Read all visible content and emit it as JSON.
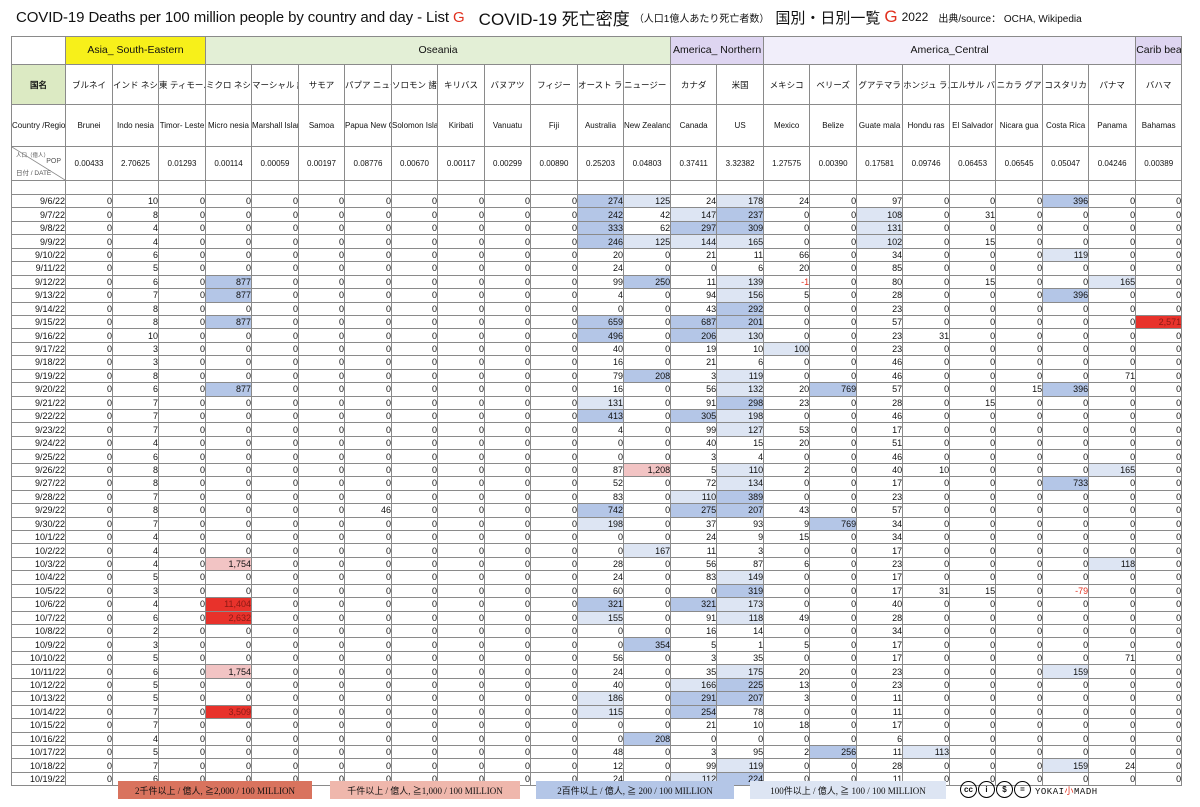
{
  "title": {
    "en": "COVID-19 Deaths per 100 million people by country and day - List",
    "list_letter": "G",
    "jp_main": "COVID-19 死亡密度",
    "jp_sub": "（人口1億人あたり死亡者数）",
    "jp_list": "国別・日別一覧",
    "jp_letter": "G",
    "year": "2022",
    "source": "出典/source： OCHA, Wikipedia"
  },
  "groups": [
    {
      "label": "Asia_ South-Eastern",
      "span": 3,
      "cls": "g-asia"
    },
    {
      "label": "Oseania",
      "span": 10,
      "cls": "g-oce"
    },
    {
      "label": "America_ Northern",
      "span": 2,
      "cls": "g-amn"
    },
    {
      "label": "America_Central",
      "span": 8,
      "cls": "g-amc"
    },
    {
      "label": "Carib bean",
      "span": 1,
      "cls": "g-car"
    }
  ],
  "row_labels": {
    "jp": "国名",
    "en": "Country /Region",
    "pop_top": "人口（億人）",
    "pop_mid": "POP",
    "pop_unit": "(億人)",
    "pop_date": "日付 / DATE"
  },
  "countries": [
    {
      "jp": "ブルネイ",
      "en": "Brunei",
      "pop": "0.00433"
    },
    {
      "jp": "インド ネシア",
      "en": "Indo nesia",
      "pop": "2.70625"
    },
    {
      "jp": "東 ティモール",
      "en": "Timor- Leste",
      "pop": "0.01293"
    },
    {
      "jp": "ミクロ ネシア 連邦",
      "en": "Micro nesia",
      "pop": "0.00114"
    },
    {
      "jp": "マーシャル 諸島",
      "en": "Marshall Islands",
      "pop": "0.00059"
    },
    {
      "jp": "サモア",
      "en": "Samoa",
      "pop": "0.00197"
    },
    {
      "jp": "パプア ニュー ギニア",
      "en": "Papua New Guinea",
      "pop": "0.08776"
    },
    {
      "jp": "ソロモン 諸島",
      "en": "Solomon Islands",
      "pop": "0.00670"
    },
    {
      "jp": "キリバス",
      "en": "Kiribati",
      "pop": "0.00117"
    },
    {
      "jp": "バヌアツ",
      "en": "Vanuatu",
      "pop": "0.00299"
    },
    {
      "jp": "フィジー",
      "en": "Fiji",
      "pop": "0.00890"
    },
    {
      "jp": "オースト ラリア",
      "en": "Australia",
      "pop": "0.25203"
    },
    {
      "jp": "ニュージー ランド",
      "en": "New Zealand",
      "pop": "0.04803"
    },
    {
      "jp": "カナダ",
      "en": "Canada",
      "pop": "0.37411"
    },
    {
      "jp": "米国",
      "en": "US",
      "pop": "3.32382"
    },
    {
      "jp": "メキシコ",
      "en": "Mexico",
      "pop": "1.27575"
    },
    {
      "jp": "ベリーズ",
      "en": "Belize",
      "pop": "0.00390"
    },
    {
      "jp": "グアテマラ",
      "en": "Guate mala",
      "pop": "0.17581"
    },
    {
      "jp": "ホンジュ ラス",
      "en": "Hondu ras",
      "pop": "0.09746"
    },
    {
      "jp": "エルサル バドル",
      "en": "El Salvador",
      "pop": "0.06453"
    },
    {
      "jp": "ニカラ グア",
      "en": "Nicara gua",
      "pop": "0.06545"
    },
    {
      "jp": "コスタリカ",
      "en": "Costa Rica",
      "pop": "0.05047"
    },
    {
      "jp": "パナマ",
      "en": "Panama",
      "pop": "0.04246"
    },
    {
      "jp": "バハマ",
      "en": "Bahamas",
      "pop": "0.00389"
    }
  ],
  "rows": [
    {
      "date": "9/6/22",
      "v": [
        "0",
        "10",
        "0",
        "0",
        "0",
        "0",
        "0",
        "0",
        "0",
        "0",
        "0",
        "274",
        "125",
        "24",
        "178",
        "24",
        "0",
        "97",
        "0",
        "0",
        "0",
        "396",
        "0",
        "0"
      ]
    },
    {
      "date": "9/7/22",
      "v": [
        "0",
        "8",
        "0",
        "0",
        "0",
        "0",
        "0",
        "0",
        "0",
        "0",
        "0",
        "242",
        "42",
        "147",
        "237",
        "0",
        "0",
        "108",
        "0",
        "31",
        "0",
        "0",
        "0",
        "0"
      ]
    },
    {
      "date": "9/8/22",
      "v": [
        "0",
        "4",
        "0",
        "0",
        "0",
        "0",
        "0",
        "0",
        "0",
        "0",
        "0",
        "333",
        "62",
        "297",
        "309",
        "0",
        "0",
        "131",
        "0",
        "0",
        "0",
        "0",
        "0",
        "0"
      ]
    },
    {
      "date": "9/9/22",
      "v": [
        "0",
        "4",
        "0",
        "0",
        "0",
        "0",
        "0",
        "0",
        "0",
        "0",
        "0",
        "246",
        "125",
        "144",
        "165",
        "0",
        "0",
        "102",
        "0",
        "15",
        "0",
        "0",
        "0",
        "0"
      ]
    },
    {
      "date": "9/10/22",
      "v": [
        "0",
        "6",
        "0",
        "0",
        "0",
        "0",
        "0",
        "0",
        "0",
        "0",
        "0",
        "20",
        "0",
        "21",
        "11",
        "66",
        "0",
        "34",
        "0",
        "0",
        "0",
        "119",
        "0",
        "0"
      ]
    },
    {
      "date": "9/11/22",
      "v": [
        "0",
        "5",
        "0",
        "0",
        "0",
        "0",
        "0",
        "0",
        "0",
        "0",
        "0",
        "24",
        "0",
        "0",
        "6",
        "20",
        "0",
        "85",
        "0",
        "0",
        "0",
        "0",
        "0",
        "0"
      ]
    },
    {
      "date": "9/12/22",
      "v": [
        "0",
        "6",
        "0",
        "877",
        "0",
        "0",
        "0",
        "0",
        "0",
        "0",
        "0",
        "99",
        "250",
        "11",
        "139",
        "-1",
        "0",
        "80",
        "0",
        "15",
        "0",
        "0",
        "165",
        "0"
      ]
    },
    {
      "date": "9/13/22",
      "v": [
        "0",
        "7",
        "0",
        "877",
        "0",
        "0",
        "0",
        "0",
        "0",
        "0",
        "0",
        "4",
        "0",
        "94",
        "156",
        "5",
        "0",
        "28",
        "0",
        "0",
        "0",
        "396",
        "0",
        "0"
      ]
    },
    {
      "date": "9/14/22",
      "v": [
        "0",
        "8",
        "0",
        "0",
        "0",
        "0",
        "0",
        "0",
        "0",
        "0",
        "0",
        "0",
        "0",
        "43",
        "292",
        "0",
        "0",
        "23",
        "0",
        "0",
        "0",
        "0",
        "0",
        "0"
      ]
    },
    {
      "date": "9/15/22",
      "v": [
        "0",
        "8",
        "0",
        "877",
        "0",
        "0",
        "0",
        "0",
        "0",
        "0",
        "0",
        "659",
        "0",
        "687",
        "201",
        "0",
        "0",
        "57",
        "0",
        "0",
        "0",
        "0",
        "0",
        "2,571"
      ]
    },
    {
      "date": "9/16/22",
      "v": [
        "0",
        "10",
        "0",
        "0",
        "0",
        "0",
        "0",
        "0",
        "0",
        "0",
        "0",
        "496",
        "0",
        "206",
        "130",
        "0",
        "0",
        "23",
        "31",
        "0",
        "0",
        "0",
        "0",
        "0"
      ]
    },
    {
      "date": "9/17/22",
      "v": [
        "0",
        "3",
        "0",
        "0",
        "0",
        "0",
        "0",
        "0",
        "0",
        "0",
        "0",
        "40",
        "0",
        "19",
        "10",
        "100",
        "0",
        "23",
        "0",
        "0",
        "0",
        "0",
        "0",
        "0"
      ]
    },
    {
      "date": "9/18/22",
      "v": [
        "0",
        "3",
        "0",
        "0",
        "0",
        "0",
        "0",
        "0",
        "0",
        "0",
        "0",
        "16",
        "0",
        "21",
        "6",
        "0",
        "0",
        "46",
        "0",
        "0",
        "0",
        "0",
        "0",
        "0"
      ]
    },
    {
      "date": "9/19/22",
      "v": [
        "0",
        "8",
        "0",
        "0",
        "0",
        "0",
        "0",
        "0",
        "0",
        "0",
        "0",
        "79",
        "208",
        "3",
        "119",
        "0",
        "0",
        "46",
        "0",
        "0",
        "0",
        "0",
        "71",
        "0"
      ]
    },
    {
      "date": "9/20/22",
      "v": [
        "0",
        "6",
        "0",
        "877",
        "0",
        "0",
        "0",
        "0",
        "0",
        "0",
        "0",
        "16",
        "0",
        "56",
        "132",
        "20",
        "769",
        "57",
        "0",
        "0",
        "15",
        "396",
        "0",
        "0"
      ]
    },
    {
      "date": "9/21/22",
      "v": [
        "0",
        "7",
        "0",
        "0",
        "0",
        "0",
        "0",
        "0",
        "0",
        "0",
        "0",
        "131",
        "0",
        "91",
        "298",
        "23",
        "0",
        "28",
        "0",
        "15",
        "0",
        "0",
        "0",
        "0"
      ]
    },
    {
      "date": "9/22/22",
      "v": [
        "0",
        "7",
        "0",
        "0",
        "0",
        "0",
        "0",
        "0",
        "0",
        "0",
        "0",
        "413",
        "0",
        "305",
        "198",
        "0",
        "0",
        "46",
        "0",
        "0",
        "0",
        "0",
        "0",
        "0"
      ]
    },
    {
      "date": "9/23/22",
      "v": [
        "0",
        "7",
        "0",
        "0",
        "0",
        "0",
        "0",
        "0",
        "0",
        "0",
        "0",
        "4",
        "0",
        "99",
        "127",
        "53",
        "0",
        "17",
        "0",
        "0",
        "0",
        "0",
        "0",
        "0"
      ]
    },
    {
      "date": "9/24/22",
      "v": [
        "0",
        "4",
        "0",
        "0",
        "0",
        "0",
        "0",
        "0",
        "0",
        "0",
        "0",
        "0",
        "0",
        "40",
        "15",
        "20",
        "0",
        "51",
        "0",
        "0",
        "0",
        "0",
        "0",
        "0"
      ]
    },
    {
      "date": "9/25/22",
      "v": [
        "0",
        "6",
        "0",
        "0",
        "0",
        "0",
        "0",
        "0",
        "0",
        "0",
        "0",
        "0",
        "0",
        "3",
        "4",
        "0",
        "0",
        "46",
        "0",
        "0",
        "0",
        "0",
        "0",
        "0"
      ]
    },
    {
      "date": "9/26/22",
      "v": [
        "0",
        "8",
        "0",
        "0",
        "0",
        "0",
        "0",
        "0",
        "0",
        "0",
        "0",
        "87",
        "1,208",
        "5",
        "110",
        "2",
        "0",
        "40",
        "10",
        "0",
        "0",
        "0",
        "165",
        "0"
      ]
    },
    {
      "date": "9/27/22",
      "v": [
        "0",
        "8",
        "0",
        "0",
        "0",
        "0",
        "0",
        "0",
        "0",
        "0",
        "0",
        "52",
        "0",
        "72",
        "134",
        "0",
        "0",
        "17",
        "0",
        "0",
        "0",
        "733",
        "0",
        "0"
      ]
    },
    {
      "date": "9/28/22",
      "v": [
        "0",
        "7",
        "0",
        "0",
        "0",
        "0",
        "0",
        "0",
        "0",
        "0",
        "0",
        "83",
        "0",
        "110",
        "389",
        "0",
        "0",
        "23",
        "0",
        "0",
        "0",
        "0",
        "0",
        "0"
      ]
    },
    {
      "date": "9/29/22",
      "v": [
        "0",
        "8",
        "0",
        "0",
        "0",
        "0",
        "46",
        "0",
        "0",
        "0",
        "0",
        "742",
        "0",
        "275",
        "207",
        "43",
        "0",
        "57",
        "0",
        "0",
        "0",
        "0",
        "0",
        "0"
      ]
    },
    {
      "date": "9/30/22",
      "v": [
        "0",
        "7",
        "0",
        "0",
        "0",
        "0",
        "0",
        "0",
        "0",
        "0",
        "0",
        "198",
        "0",
        "37",
        "93",
        "9",
        "769",
        "34",
        "0",
        "0",
        "0",
        "0",
        "0",
        "0"
      ]
    },
    {
      "date": "10/1/22",
      "v": [
        "0",
        "4",
        "0",
        "0",
        "0",
        "0",
        "0",
        "0",
        "0",
        "0",
        "0",
        "0",
        "0",
        "24",
        "9",
        "15",
        "0",
        "34",
        "0",
        "0",
        "0",
        "0",
        "0",
        "0"
      ]
    },
    {
      "date": "10/2/22",
      "v": [
        "0",
        "4",
        "0",
        "0",
        "0",
        "0",
        "0",
        "0",
        "0",
        "0",
        "0",
        "0",
        "167",
        "11",
        "3",
        "0",
        "0",
        "17",
        "0",
        "0",
        "0",
        "0",
        "0",
        "0"
      ]
    },
    {
      "date": "10/3/22",
      "v": [
        "0",
        "4",
        "0",
        "1,754",
        "0",
        "0",
        "0",
        "0",
        "0",
        "0",
        "0",
        "28",
        "0",
        "56",
        "87",
        "6",
        "0",
        "23",
        "0",
        "0",
        "0",
        "0",
        "118",
        "0"
      ]
    },
    {
      "date": "10/4/22",
      "v": [
        "0",
        "5",
        "0",
        "0",
        "0",
        "0",
        "0",
        "0",
        "0",
        "0",
        "0",
        "24",
        "0",
        "83",
        "149",
        "0",
        "0",
        "17",
        "0",
        "0",
        "0",
        "0",
        "0",
        "0"
      ]
    },
    {
      "date": "10/5/22",
      "v": [
        "0",
        "3",
        "0",
        "0",
        "0",
        "0",
        "0",
        "0",
        "0",
        "0",
        "0",
        "60",
        "0",
        "0",
        "319",
        "0",
        "0",
        "17",
        "31",
        "15",
        "0",
        "-79",
        "0",
        "0"
      ]
    },
    {
      "date": "10/6/22",
      "v": [
        "0",
        "4",
        "0",
        "11,404",
        "0",
        "0",
        "0",
        "0",
        "0",
        "0",
        "0",
        "321",
        "0",
        "321",
        "173",
        "0",
        "0",
        "40",
        "0",
        "0",
        "0",
        "0",
        "0",
        "0"
      ]
    },
    {
      "date": "10/7/22",
      "v": [
        "0",
        "6",
        "0",
        "2,632",
        "0",
        "0",
        "0",
        "0",
        "0",
        "0",
        "0",
        "155",
        "0",
        "91",
        "118",
        "49",
        "0",
        "28",
        "0",
        "0",
        "0",
        "0",
        "0",
        "0"
      ]
    },
    {
      "date": "10/8/22",
      "v": [
        "0",
        "2",
        "0",
        "0",
        "0",
        "0",
        "0",
        "0",
        "0",
        "0",
        "0",
        "0",
        "0",
        "16",
        "14",
        "0",
        "0",
        "34",
        "0",
        "0",
        "0",
        "0",
        "0",
        "0"
      ]
    },
    {
      "date": "10/9/22",
      "v": [
        "0",
        "3",
        "0",
        "0",
        "0",
        "0",
        "0",
        "0",
        "0",
        "0",
        "0",
        "0",
        "354",
        "5",
        "1",
        "5",
        "0",
        "17",
        "0",
        "0",
        "0",
        "0",
        "0",
        "0"
      ]
    },
    {
      "date": "10/10/22",
      "v": [
        "0",
        "5",
        "0",
        "0",
        "0",
        "0",
        "0",
        "0",
        "0",
        "0",
        "0",
        "56",
        "0",
        "3",
        "35",
        "0",
        "0",
        "17",
        "0",
        "0",
        "0",
        "0",
        "71",
        "0"
      ]
    },
    {
      "date": "10/11/22",
      "v": [
        "0",
        "6",
        "0",
        "1,754",
        "0",
        "0",
        "0",
        "0",
        "0",
        "0",
        "0",
        "24",
        "0",
        "35",
        "175",
        "20",
        "0",
        "23",
        "0",
        "0",
        "0",
        "159",
        "0",
        "0"
      ]
    },
    {
      "date": "10/12/22",
      "v": [
        "0",
        "5",
        "0",
        "0",
        "0",
        "0",
        "0",
        "0",
        "0",
        "0",
        "0",
        "40",
        "0",
        "166",
        "225",
        "13",
        "0",
        "23",
        "0",
        "0",
        "0",
        "0",
        "0",
        "0"
      ]
    },
    {
      "date": "10/13/22",
      "v": [
        "0",
        "5",
        "0",
        "0",
        "0",
        "0",
        "0",
        "0",
        "0",
        "0",
        "0",
        "186",
        "0",
        "291",
        "207",
        "3",
        "0",
        "11",
        "0",
        "0",
        "0",
        "0",
        "0",
        "0"
      ]
    },
    {
      "date": "10/14/22",
      "v": [
        "0",
        "7",
        "0",
        "3,509",
        "0",
        "0",
        "0",
        "0",
        "0",
        "0",
        "0",
        "115",
        "0",
        "254",
        "78",
        "0",
        "0",
        "11",
        "0",
        "0",
        "0",
        "0",
        "0",
        "0"
      ]
    },
    {
      "date": "10/15/22",
      "v": [
        "0",
        "7",
        "0",
        "0",
        "0",
        "0",
        "0",
        "0",
        "0",
        "0",
        "0",
        "0",
        "0",
        "21",
        "10",
        "18",
        "0",
        "17",
        "0",
        "0",
        "0",
        "0",
        "0",
        "0"
      ]
    },
    {
      "date": "10/16/22",
      "v": [
        "0",
        "4",
        "0",
        "0",
        "0",
        "0",
        "0",
        "0",
        "0",
        "0",
        "0",
        "0",
        "208",
        "0",
        "0",
        "0",
        "0",
        "6",
        "0",
        "0",
        "0",
        "0",
        "0",
        "0"
      ]
    },
    {
      "date": "10/17/22",
      "v": [
        "0",
        "5",
        "0",
        "0",
        "0",
        "0",
        "0",
        "0",
        "0",
        "0",
        "0",
        "48",
        "0",
        "3",
        "95",
        "2",
        "256",
        "11",
        "113",
        "0",
        "0",
        "0",
        "0",
        "0"
      ]
    },
    {
      "date": "10/18/22",
      "v": [
        "0",
        "7",
        "0",
        "0",
        "0",
        "0",
        "0",
        "0",
        "0",
        "0",
        "0",
        "12",
        "0",
        "99",
        "119",
        "0",
        "0",
        "28",
        "0",
        "0",
        "0",
        "159",
        "24",
        "0"
      ]
    },
    {
      "date": "10/19/22",
      "v": [
        "0",
        "6",
        "0",
        "0",
        "0",
        "0",
        "0",
        "0",
        "0",
        "0",
        "0",
        "24",
        "0",
        "112",
        "224",
        "0",
        "0",
        "11",
        "0",
        "0",
        "0",
        "0",
        "0",
        "0"
      ]
    }
  ],
  "legend": {
    "l1": "2千件以上 / 億人, ≧2,000 / 100 MILLION",
    "l2": "千件以上 / 億人, ≧1,000 / 100 MILLION",
    "l3": "2百件以上 / 億人, ≧ 200 / 100 MILLION",
    "l4": "100件以上 / 億人, ≧ 100 / 100 MILLION",
    "colors": {
      "l1": "#d9735e",
      "l2": "#efb7ac",
      "l3": "#b4c6e7",
      "l4": "#dde5f3"
    },
    "cc": [
      "cc",
      "i",
      "$",
      "="
    ],
    "logo_a": "YOKAI",
    "logo_k": "小",
    "logo_b": "MADH"
  }
}
